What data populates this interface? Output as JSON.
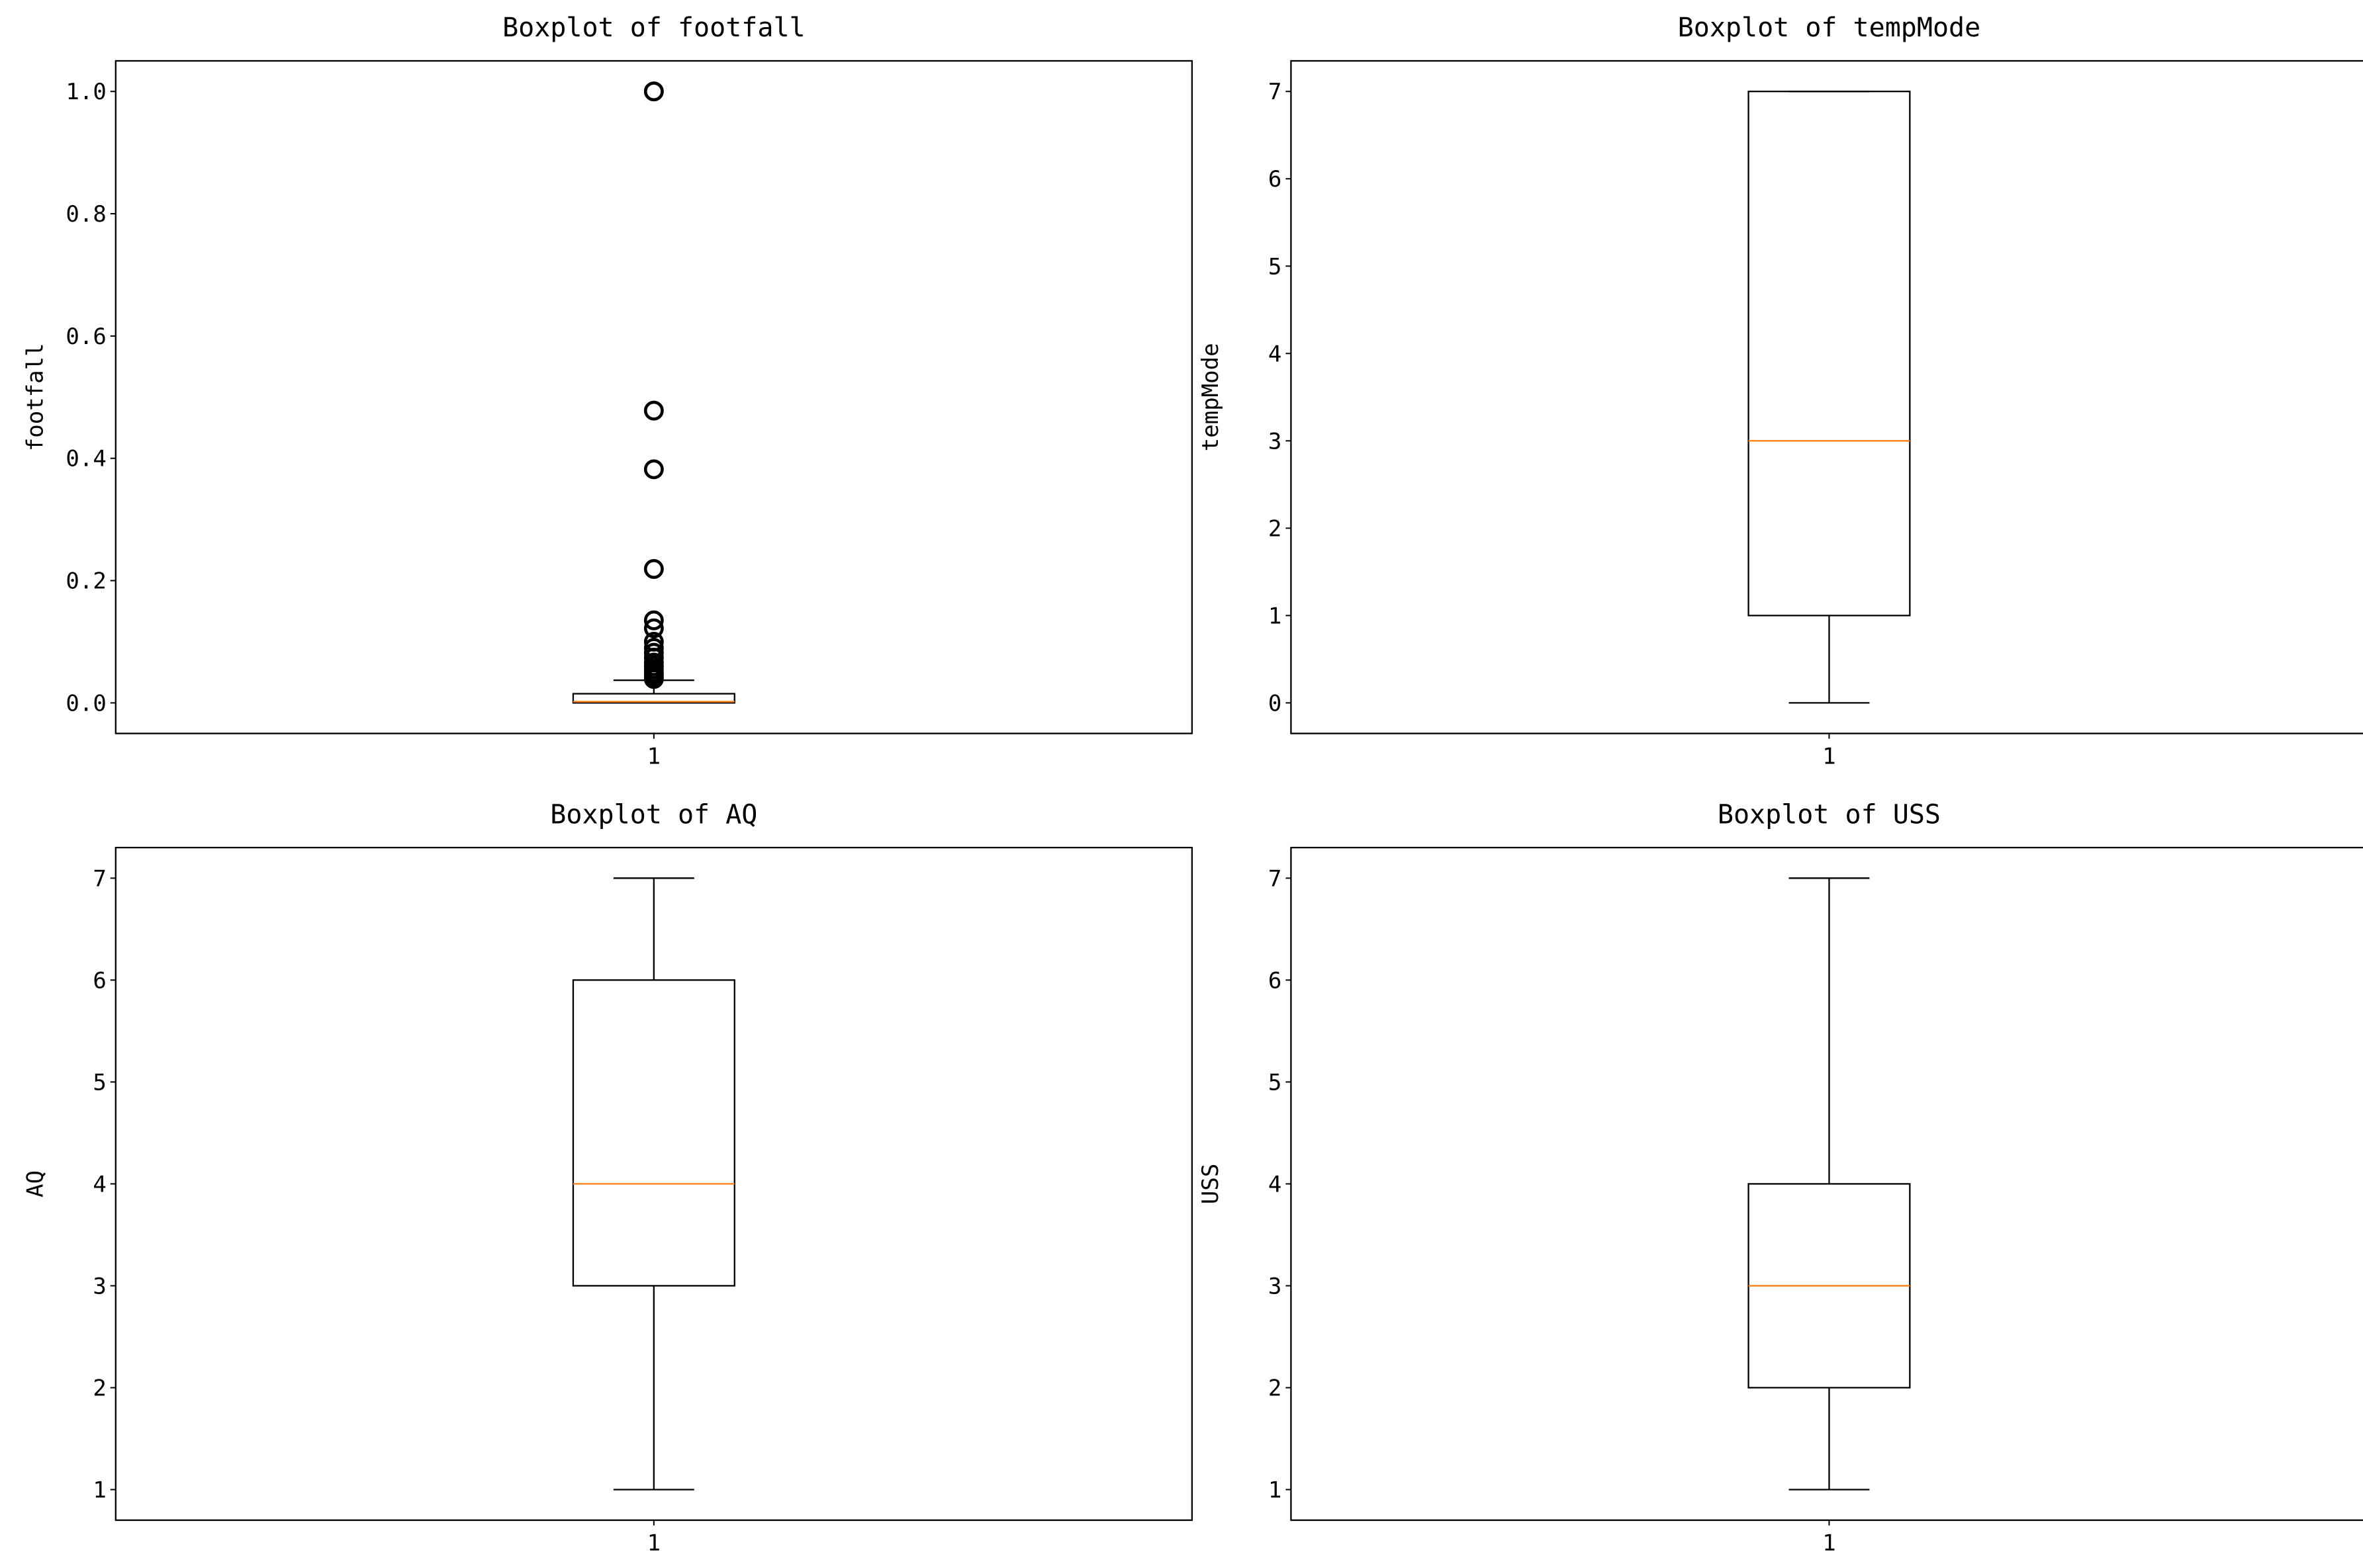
{
  "chart_data": [
    {
      "type": "boxplot",
      "title": "Boxplot of footfall",
      "xlabel": "",
      "ylabel": "footfall",
      "categories": [
        "1"
      ],
      "ylim": [
        -0.05,
        1.05
      ],
      "yticks": [
        "0.0",
        "0.2",
        "0.4",
        "0.6",
        "0.8",
        "1.0"
      ],
      "box": {
        "whislo": 0.0,
        "q1": 0.0,
        "med": 0.002,
        "q3": 0.015,
        "whishi": 0.037
      },
      "fliers": [
        1.0,
        1.0,
        0.478,
        0.382,
        0.219,
        0.135,
        0.122,
        0.1,
        0.09,
        0.082,
        0.074,
        0.066,
        0.06,
        0.055,
        0.05,
        0.046,
        0.042,
        0.039
      ],
      "colors": {
        "box": "#000000",
        "median": "#ff7f0e"
      }
    },
    {
      "type": "boxplot",
      "title": "Boxplot of tempMode",
      "xlabel": "",
      "ylabel": "tempMode",
      "categories": [
        "1"
      ],
      "ylim": [
        -0.35,
        7.35
      ],
      "yticks": [
        "0",
        "1",
        "2",
        "3",
        "4",
        "5",
        "6",
        "7"
      ],
      "box": {
        "whislo": 0,
        "q1": 1,
        "med": 3,
        "q3": 7,
        "whishi": 7
      },
      "fliers": [],
      "colors": {
        "box": "#000000",
        "median": "#ff7f0e"
      }
    },
    {
      "type": "boxplot",
      "title": "Boxplot of AQ",
      "xlabel": "",
      "ylabel": "AQ",
      "categories": [
        "1"
      ],
      "ylim": [
        0.7,
        7.3
      ],
      "yticks": [
        "1",
        "2",
        "3",
        "4",
        "5",
        "6",
        "7"
      ],
      "box": {
        "whislo": 1,
        "q1": 3,
        "med": 4,
        "q3": 6,
        "whishi": 7
      },
      "fliers": [],
      "colors": {
        "box": "#000000",
        "median": "#ff7f0e"
      }
    },
    {
      "type": "boxplot",
      "title": "Boxplot of USS",
      "xlabel": "",
      "ylabel": "USS",
      "categories": [
        "1"
      ],
      "ylim": [
        0.7,
        7.3
      ],
      "yticks": [
        "1",
        "2",
        "3",
        "4",
        "5",
        "6",
        "7"
      ],
      "box": {
        "whislo": 1,
        "q1": 2,
        "med": 3,
        "q3": 4,
        "whishi": 7
      },
      "fliers": [],
      "colors": {
        "box": "#000000",
        "median": "#ff7f0e"
      }
    }
  ]
}
